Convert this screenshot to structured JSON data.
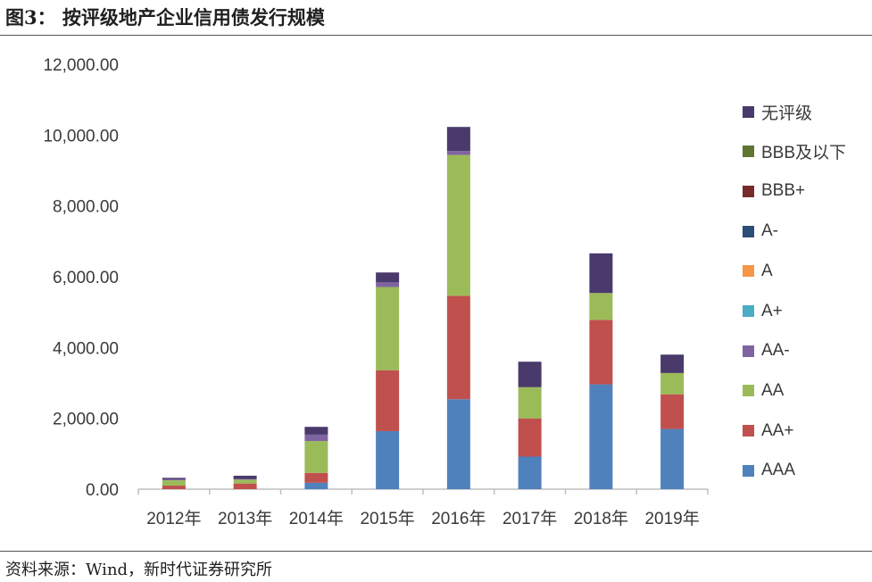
{
  "figure_title": "图3：  按评级地产企业信用债发行规模",
  "source_note": "资料来源：Wind，新时代证券研究所",
  "chart_data": {
    "type": "bar",
    "stacked": true,
    "categories": [
      "2012年",
      "2013年",
      "2014年",
      "2015年",
      "2016年",
      "2017年",
      "2018年",
      "2019年"
    ],
    "ylim": [
      0,
      12000
    ],
    "yticks": [
      "0.00",
      "2,000.00",
      "4,000.00",
      "6,000.00",
      "8,000.00",
      "10,000.00",
      "12,000.00"
    ],
    "ytick_values": [
      0,
      2000,
      4000,
      6000,
      8000,
      10000,
      12000
    ],
    "xlabel": "",
    "ylabel": "",
    "grid": false,
    "legend_position": "right",
    "series": [
      {
        "name": "AAA",
        "color": "#4f81bd",
        "values": [
          0,
          0,
          180,
          1640,
          2540,
          920,
          2960,
          1700
        ]
      },
      {
        "name": "AA+",
        "color": "#c0504d",
        "values": [
          100,
          160,
          280,
          1720,
          2920,
          1080,
          1820,
          980
        ]
      },
      {
        "name": "AA",
        "color": "#9bbb59",
        "values": [
          150,
          110,
          900,
          2350,
          3980,
          880,
          760,
          600
        ]
      },
      {
        "name": "AA-",
        "color": "#8064a2",
        "values": [
          30,
          20,
          180,
          130,
          110,
          0,
          0,
          0
        ]
      },
      {
        "name": "A+",
        "color": "#4bacc6",
        "values": [
          0,
          0,
          0,
          0,
          0,
          0,
          0,
          0
        ]
      },
      {
        "name": "A",
        "color": "#f79646",
        "values": [
          0,
          0,
          0,
          0,
          0,
          0,
          0,
          0
        ]
      },
      {
        "name": "A-",
        "color": "#2c4d75",
        "values": [
          0,
          0,
          0,
          0,
          0,
          0,
          0,
          0
        ]
      },
      {
        "name": "BBB+",
        "color": "#772c2a",
        "values": [
          0,
          0,
          0,
          0,
          0,
          0,
          0,
          0
        ]
      },
      {
        "name": "BBB及以下",
        "color": "#5f7530",
        "values": [
          0,
          0,
          0,
          0,
          0,
          0,
          0,
          0
        ]
      },
      {
        "name": "无评级",
        "color": "#4a3a6b",
        "values": [
          40,
          90,
          220,
          280,
          680,
          720,
          1120,
          520
        ]
      }
    ]
  }
}
